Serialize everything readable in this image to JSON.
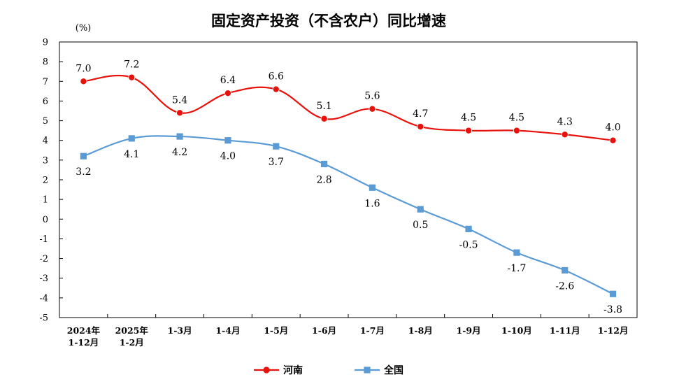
{
  "chart_data": {
    "type": "line",
    "title": "固定资产投资（不含农户）同比增速",
    "unit": "(%)",
    "ylim": [
      -5,
      9
    ],
    "yticks": [
      9,
      8,
      7,
      6,
      5,
      4,
      3,
      2,
      1,
      0,
      -1,
      -2,
      -3,
      -4,
      -5
    ],
    "ytick_labels": [
      "9",
      "8",
      "7",
      "6",
      "5",
      "4",
      "3",
      "2",
      "1",
      "0",
      "-1",
      "-2",
      "-3",
      "-4",
      "-5"
    ],
    "categories": [
      [
        "2024年",
        "1-12月"
      ],
      [
        "2025年",
        "1-2月"
      ],
      [
        "1-3月"
      ],
      [
        "1-4月"
      ],
      [
        "1-5月"
      ],
      [
        "1-6月"
      ],
      [
        "1-7月"
      ],
      [
        "1-8月"
      ],
      [
        "1-9月"
      ],
      [
        "1-10月"
      ],
      [
        "1-11月"
      ],
      [
        "1-12月"
      ]
    ],
    "grid": false,
    "legend_position": "bottom",
    "series": [
      {
        "name": "河南",
        "color": "#e8120c",
        "marker": "circle",
        "values": [
          7.0,
          7.2,
          5.4,
          6.4,
          6.6,
          5.1,
          5.6,
          4.7,
          4.5,
          4.5,
          4.3,
          4.0
        ],
        "labels": [
          "7.0",
          "7.2",
          "5.4",
          "6.4",
          "6.6",
          "5.1",
          "5.6",
          "4.7",
          "4.5",
          "4.5",
          "4.3",
          "4.0"
        ],
        "label_position": "above"
      },
      {
        "name": "全国",
        "color": "#5b9bd5",
        "marker": "square",
        "values": [
          3.2,
          4.1,
          4.2,
          4.0,
          3.7,
          2.8,
          1.6,
          0.5,
          -0.5,
          -1.7,
          -2.6,
          -3.8
        ],
        "labels": [
          "3.2",
          "4.1",
          "4.2",
          "4.0",
          "3.7",
          "2.8",
          "1.6",
          "0.5",
          "-0.5",
          "-1.7",
          "-2.6",
          "-3.8"
        ],
        "label_position": "below"
      }
    ]
  }
}
